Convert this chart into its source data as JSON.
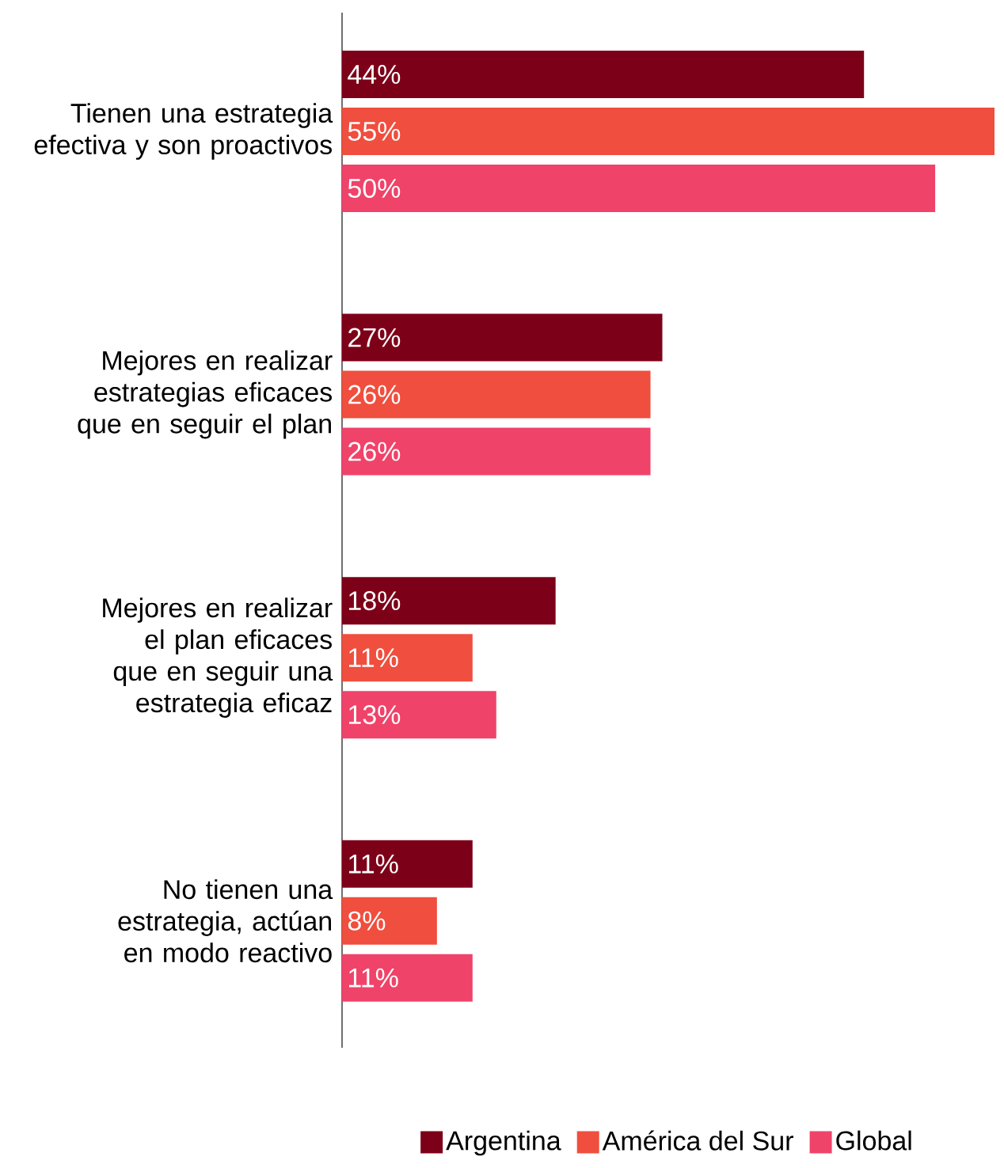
{
  "chart_data": {
    "type": "bar",
    "orientation": "horizontal",
    "legend": "bottom",
    "categories": [
      "Tienen una estrategia efectiva y son proactivos",
      "Mejores en realizar estrategias eficaces que en seguir el plan",
      "Mejores en realizar el plan eficaces que en seguir una estrategia eficaz",
      "No tienen una estrategia, actúan en modo reactivo"
    ],
    "series": [
      {
        "name": "Argentina",
        "color": "#7d0019",
        "values": [
          44,
          27,
          18,
          11
        ],
        "value_labels": [
          "44%",
          "27%",
          "18%",
          "11%"
        ]
      },
      {
        "name": "América del Sur",
        "color": "#f04e3e",
        "values": [
          55,
          26,
          11,
          8
        ],
        "value_labels": [
          "55%",
          "26%",
          "11%",
          "8%"
        ]
      },
      {
        "name": "Global",
        "color": "#f0436a",
        "values": [
          50,
          26,
          13,
          11
        ],
        "value_labels": [
          "50%",
          "26%",
          "13%",
          "11%"
        ]
      }
    ]
  }
}
